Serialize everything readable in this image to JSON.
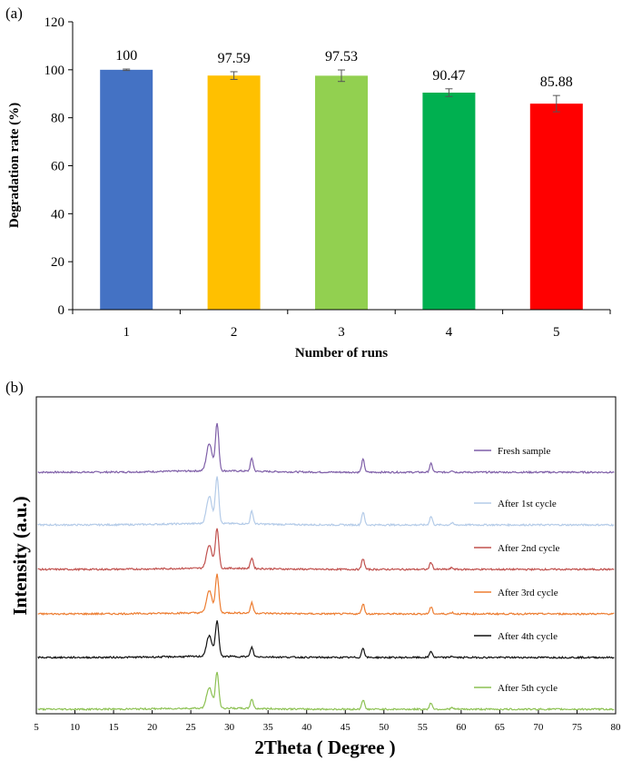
{
  "chart_data": [
    {
      "type": "bar",
      "panel_label": "(a)",
      "xlabel": "Number of runs",
      "ylabel": "Degradation rate (%)",
      "ylim": [
        0,
        120
      ],
      "yticks": [
        0,
        20,
        40,
        60,
        80,
        100,
        120
      ],
      "categories": [
        "1",
        "2",
        "3",
        "4",
        "5"
      ],
      "values": [
        100,
        97.59,
        97.53,
        90.47,
        85.88
      ],
      "labels": [
        "100",
        "97.59",
        "97.53",
        "90.47",
        "85.88"
      ],
      "errors": [
        0.3,
        1.6,
        2.4,
        1.6,
        3.4
      ],
      "colors": [
        "#4472C4",
        "#FFC000",
        "#92D050",
        "#00B050",
        "#FF0000"
      ],
      "grid": false
    },
    {
      "type": "line",
      "panel_label": "(b)",
      "xlabel": "2Theta ( Degree )",
      "ylabel": "Intensity (a.u.)",
      "xlim": [
        5,
        80
      ],
      "xticks": [
        5,
        10,
        15,
        20,
        25,
        30,
        35,
        40,
        45,
        50,
        55,
        60,
        65,
        70,
        75,
        80
      ],
      "peaks": [
        {
          "position": 27.4,
          "height": 0.58
        },
        {
          "position": 28.4,
          "height": 1.0
        },
        {
          "position": 32.9,
          "height": 0.27
        },
        {
          "position": 47.3,
          "height": 0.27
        },
        {
          "position": 56.1,
          "height": 0.18
        },
        {
          "position": 58.8,
          "height": 0.04
        }
      ],
      "series": [
        {
          "name": "Fresh sample",
          "color": "#7F5FA8",
          "peak_scale": 1.0
        },
        {
          "name": "After 1st cycle",
          "color": "#B4CBE8",
          "peak_scale": 1.0
        },
        {
          "name": "After 2nd cycle",
          "color": "#C0504D",
          "peak_scale": 0.85
        },
        {
          "name": "After 3rd cycle",
          "color": "#ED7D31",
          "peak_scale": 0.8
        },
        {
          "name": "After 4th cycle",
          "color": "#111111",
          "peak_scale": 0.75
        },
        {
          "name": "After 5th cycle",
          "color": "#8CC152",
          "peak_scale": 0.75
        }
      ],
      "legend": "right, next to each trace",
      "grid": false
    }
  ]
}
